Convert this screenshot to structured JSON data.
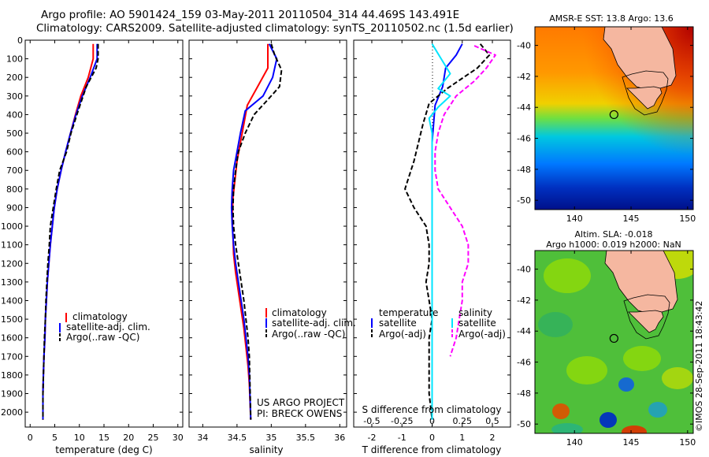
{
  "title_line1": "Argo profile: AO 5901424_159 03-May-2011 20110504_314 44.469S 143.491E",
  "title_line2": "Climatology: CARS2009. Satellite-adjusted climatology: synTS_20110502.nc (1.5d earlier)",
  "colors": {
    "climatology": "#ff0000",
    "satellite": "#0000ff",
    "argo": "#000000",
    "salinity_satellite": "#00e5ff",
    "salinity_argo": "#ff00ff",
    "land": "#f5b7a0"
  },
  "chart_data": [
    {
      "type": "line",
      "id": "temperature",
      "xlabel": "temperature (deg C)",
      "xlim": [
        -1,
        31
      ],
      "xticks": [
        0,
        5,
        10,
        15,
        20,
        25,
        30
      ],
      "ylim": [
        0,
        2080
      ],
      "yticks": [
        0,
        100,
        200,
        300,
        400,
        500,
        600,
        700,
        800,
        900,
        1000,
        1100,
        1200,
        1300,
        1400,
        1500,
        1600,
        1700,
        1800,
        1900,
        2000
      ],
      "legend": [
        "climatology",
        "satellite-adj. clim.",
        "Argo(..raw -QC)"
      ],
      "series": [
        {
          "name": "climatology",
          "x": [
            12.8,
            12.8,
            11.8,
            10.3,
            9.2,
            8.2,
            7.2,
            6.3,
            5.5,
            4.9,
            4.5,
            4.1,
            3.8,
            3.5,
            3.3,
            3.1,
            3.0,
            2.8,
            2.7,
            2.6,
            2.6
          ],
          "y": [
            20,
            100,
            200,
            300,
            400,
            500,
            600,
            700,
            800,
            900,
            1000,
            1100,
            1200,
            1300,
            1400,
            1500,
            1600,
            1700,
            1800,
            1900,
            2040
          ]
        },
        {
          "name": "satellite-adj. clim.",
          "x": [
            13.6,
            13.6,
            12.2,
            10.6,
            9.3,
            8.2,
            7.2,
            6.3,
            5.5,
            4.9,
            4.5,
            4.1,
            3.8,
            3.5,
            3.3,
            3.1,
            3.0,
            2.8,
            2.7,
            2.6,
            2.6
          ],
          "y": [
            20,
            100,
            200,
            300,
            400,
            500,
            600,
            700,
            800,
            900,
            1000,
            1100,
            1200,
            1300,
            1400,
            1500,
            1600,
            1700,
            1800,
            1900,
            2040
          ]
        },
        {
          "name": "Argo(..raw -QC)",
          "x": [
            13.8,
            13.8,
            13.4,
            11.4,
            9.5,
            8.3,
            7.4,
            6.0,
            5.3,
            4.7,
            4.1,
            3.9,
            3.6,
            3.4,
            3.2,
            3.1,
            2.9,
            2.8,
            2.7,
            2.6,
            2.6
          ],
          "y": [
            20,
            100,
            150,
            250,
            400,
            500,
            600,
            700,
            800,
            900,
            1000,
            1100,
            1200,
            1300,
            1400,
            1500,
            1600,
            1700,
            1800,
            1900,
            2040
          ]
        }
      ]
    },
    {
      "type": "line",
      "id": "salinity",
      "xlabel": "salinity",
      "xlim": [
        33.8,
        36.1
      ],
      "xticks": [
        34,
        34.5,
        35,
        35.5,
        36
      ],
      "xtick_labels": [
        "34",
        "34.5",
        "35",
        "35.5",
        "36"
      ],
      "ylim": [
        0,
        2080
      ],
      "legend": [
        "climatology",
        "satellite-adj. clim.",
        "Argo(..raw -QC)"
      ],
      "annotation": [
        "US ARGO PROJECT",
        "PI: BRECK OWENS"
      ],
      "series": [
        {
          "name": "climatology",
          "x": [
            34.95,
            34.95,
            34.95,
            34.8,
            34.65,
            34.6,
            34.55,
            34.5,
            34.47,
            34.44,
            34.43,
            34.44,
            34.45,
            34.48,
            34.52,
            34.56,
            34.6,
            34.63,
            34.66,
            34.68,
            34.7
          ],
          "y": [
            20,
            100,
            150,
            250,
            350,
            450,
            550,
            650,
            750,
            850,
            950,
            1050,
            1150,
            1250,
            1350,
            1450,
            1550,
            1650,
            1750,
            1850,
            2040
          ]
        },
        {
          "name": "satellite-adj. clim.",
          "x": [
            34.97,
            35.08,
            35.02,
            34.88,
            34.62,
            34.55,
            34.5,
            34.45,
            34.43,
            34.42,
            34.43,
            34.45,
            34.48,
            34.52,
            34.56,
            34.6,
            34.63,
            34.66,
            34.68,
            34.7
          ],
          "y": [
            20,
            100,
            200,
            300,
            380,
            500,
            600,
            700,
            800,
            900,
            1000,
            1100,
            1200,
            1300,
            1400,
            1500,
            1600,
            1700,
            1800,
            2040
          ]
        },
        {
          "name": "Argo(..raw -QC)",
          "x": [
            35.0,
            35.05,
            35.15,
            35.12,
            34.95,
            34.75,
            34.62,
            34.52,
            34.48,
            34.45,
            34.44,
            34.45,
            34.48,
            34.52,
            34.56,
            34.6,
            34.63,
            34.66,
            34.68,
            34.7
          ],
          "y": [
            20,
            80,
            160,
            250,
            320,
            400,
            500,
            600,
            700,
            800,
            900,
            1000,
            1100,
            1200,
            1300,
            1400,
            1500,
            1600,
            1700,
            2040
          ]
        }
      ]
    },
    {
      "type": "line",
      "id": "difference",
      "xlabel": "T difference from climatology",
      "xlabel_top": "S difference from climatology",
      "xlim": [
        -2.6,
        2.6
      ],
      "xticks": [
        -2,
        -1,
        0,
        1,
        2
      ],
      "top_ticks": [
        -0.5,
        -0.25,
        0,
        0.25,
        0.5
      ],
      "top_tick_labels": [
        "-0.5",
        "-0.25",
        "0",
        "0.25",
        "0.5"
      ],
      "ylim": [
        0,
        2080
      ],
      "legend_temperature": [
        "temperature",
        "satellite",
        "Argo(-adj)"
      ],
      "legend_salinity": [
        "salinity",
        "satellite",
        "Argo(-adj)"
      ],
      "series": [
        {
          "name": "temperature satellite",
          "x": [
            1.0,
            0.8,
            0.45,
            0.35,
            0.1,
            0.05,
            0.0,
            0.0,
            0.0,
            0.0,
            0.0,
            0.0,
            0.0,
            0.0,
            0.0,
            0.0,
            0.0,
            0.0,
            0.0,
            0.0
          ],
          "y": [
            20,
            80,
            150,
            250,
            350,
            450,
            550,
            650,
            750,
            850,
            950,
            1050,
            1150,
            1250,
            1350,
            1450,
            1550,
            1650,
            1750,
            2040
          ]
        },
        {
          "name": "temperature Argo(-adj)",
          "x": [
            1.6,
            1.9,
            1.5,
            0.5,
            -0.1,
            -0.3,
            -0.6,
            -0.9,
            -0.6,
            -0.2,
            -0.1,
            -0.1,
            -0.2,
            -0.1,
            0.0,
            -0.1,
            -0.1,
            -0.1,
            -0.1,
            0.0
          ],
          "y": [
            20,
            80,
            150,
            260,
            340,
            450,
            650,
            800,
            900,
            1000,
            1100,
            1200,
            1300,
            1400,
            1500,
            1600,
            1700,
            1800,
            1900,
            2040
          ]
        },
        {
          "name": "salinity satellite",
          "x": [
            0.0,
            0.15,
            0.3,
            0.1,
            0.3,
            0.1,
            -0.05,
            0.0,
            0.0,
            0.0,
            0.0,
            0.0,
            0.0,
            0.0,
            0.0,
            0.0,
            0.0,
            0.0,
            0.0,
            0.0
          ],
          "y": [
            20,
            100,
            180,
            260,
            300,
            360,
            420,
            500,
            600,
            700,
            800,
            900,
            1000,
            1100,
            1200,
            1300,
            1400,
            1500,
            1600,
            2040
          ]
        },
        {
          "name": "salinity Argo(-adj)",
          "x": [
            0.7,
            1.05,
            0.9,
            0.7,
            0.4,
            0.2,
            0.1,
            0.05,
            0.05,
            0.1,
            0.5,
            0.6,
            0.6,
            0.5,
            0.5,
            0.45,
            0.4,
            0.3
          ],
          "y": [
            30,
            80,
            150,
            220,
            300,
            400,
            500,
            600,
            700,
            800,
            1000,
            1100,
            1200,
            1300,
            1400,
            1500,
            1600,
            1700
          ]
        }
      ]
    },
    {
      "type": "heatmap",
      "id": "sst_map",
      "title": "AMSR-E SST: 13.8 Argo: 13.6",
      "xlim": [
        136.5,
        150.5
      ],
      "ylim": [
        -50.6,
        -38.8
      ],
      "xticks": [
        140,
        145,
        150
      ],
      "yticks": [
        -40,
        -42,
        -44,
        -46,
        -48,
        -50
      ],
      "ytick_labels": [
        "-40",
        "-42",
        "-44",
        "-46",
        "-48",
        "-50"
      ],
      "argo_position": {
        "lon": 143.491,
        "lat": -44.469
      }
    },
    {
      "type": "heatmap",
      "id": "sla_map",
      "title_line1": "Altim. SLA: -0.018",
      "title_line2": "Argo h1000: 0.019 h2000: NaN",
      "xlim": [
        136.5,
        150.5
      ],
      "ylim": [
        -50.6,
        -38.8
      ],
      "xticks": [
        140,
        145,
        150
      ],
      "yticks": [
        -40,
        -42,
        -44,
        -46,
        -48,
        -50
      ],
      "ytick_labels": [
        "-40",
        "-42",
        "-44",
        "-46",
        "-48",
        "-50"
      ],
      "argo_position": {
        "lon": 143.491,
        "lat": -44.469
      },
      "watermark": "©IMOS 28-Sep-2011 18:43:42"
    }
  ]
}
